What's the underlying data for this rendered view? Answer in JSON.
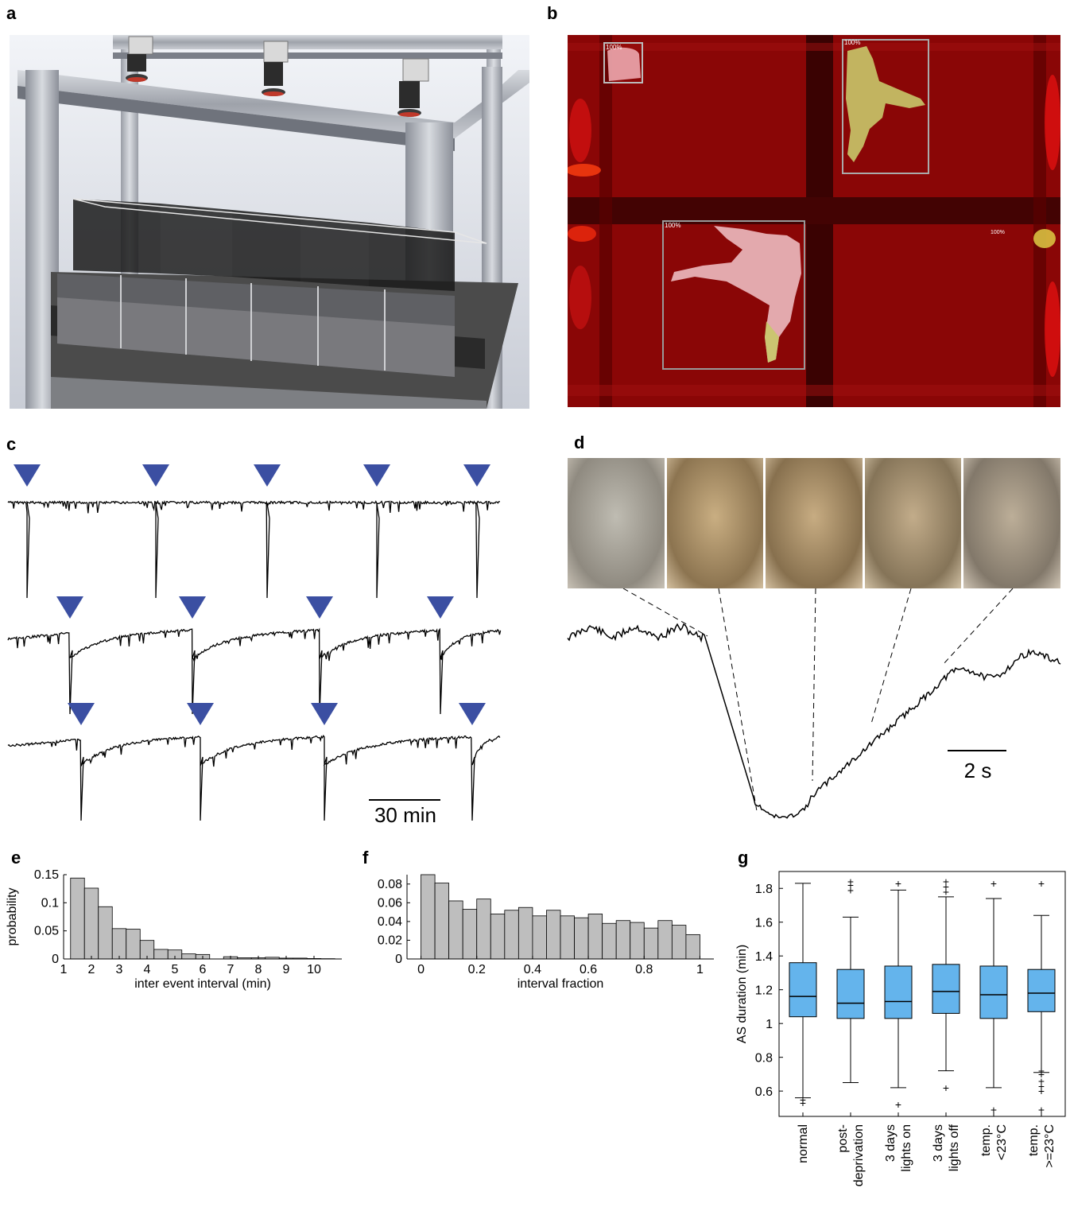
{
  "panels": {
    "a": {
      "letter": "a"
    },
    "b": {
      "letter": "b",
      "labels": [
        "100%",
        "100%",
        "100%",
        "100%"
      ]
    },
    "c": {
      "letter": "c",
      "scalebar": "30 min"
    },
    "d": {
      "letter": "d",
      "scalebar": "2 s"
    },
    "e": {
      "letter": "e"
    },
    "f": {
      "letter": "f"
    },
    "g": {
      "letter": "g"
    }
  },
  "colors": {
    "bar_fill": "#bebebe",
    "box_fill": "#64b4ec",
    "triangle": "#3b4fa2",
    "overlay_red": "#b00000"
  },
  "chart_data": [
    {
      "id": "e",
      "type": "bar",
      "xlabel": "inter event interval (min)",
      "ylabel": "probability",
      "xlim": [
        1,
        11
      ],
      "ylim": [
        0,
        0.15
      ],
      "x_ticks": [
        1,
        2,
        3,
        4,
        5,
        6,
        7,
        8,
        9,
        10
      ],
      "y_ticks": [
        0,
        0.05,
        0.1,
        0.15
      ],
      "y_tick_labels": [
        "0",
        "0.05",
        "0.1",
        "0.15"
      ],
      "bin_width": 0.5,
      "bin_starts": [
        1.25,
        1.75,
        2.25,
        2.75,
        3.25,
        3.75,
        4.25,
        4.75,
        5.25,
        5.75,
        6.25,
        6.75,
        7.25,
        7.75,
        8.25,
        8.75,
        9.25,
        9.75,
        10.25
      ],
      "values": [
        0.144,
        0.126,
        0.093,
        0.054,
        0.053,
        0.033,
        0.017,
        0.016,
        0.009,
        0.008,
        0.0,
        0.004,
        0.002,
        0.002,
        0.003,
        0.0015,
        0.0015,
        0.0008,
        0.0005
      ]
    },
    {
      "id": "f",
      "type": "bar",
      "xlabel": "interval fraction",
      "ylabel": "",
      "xlim": [
        -0.05,
        1.05
      ],
      "ylim": [
        0,
        0.09
      ],
      "x_ticks": [
        0,
        0.2,
        0.4,
        0.6,
        0.8,
        1
      ],
      "x_tick_labels": [
        "0",
        "0.2",
        "0.4",
        "0.6",
        "0.8",
        "1"
      ],
      "y_ticks": [
        0,
        0.02,
        0.04,
        0.06,
        0.08
      ],
      "y_tick_labels": [
        "0",
        "0.02",
        "0.04",
        "0.06",
        "0.08"
      ],
      "bin_width": 0.05,
      "bin_starts": [
        0,
        0.05,
        0.1,
        0.15,
        0.2,
        0.25,
        0.3,
        0.35,
        0.4,
        0.45,
        0.5,
        0.55,
        0.6,
        0.65,
        0.7,
        0.75,
        0.8,
        0.85,
        0.9,
        0.95
      ],
      "values": [
        0.09,
        0.081,
        0.062,
        0.053,
        0.064,
        0.048,
        0.052,
        0.055,
        0.046,
        0.052,
        0.046,
        0.044,
        0.048,
        0.038,
        0.041,
        0.039,
        0.033,
        0.041,
        0.036,
        0.026
      ]
    },
    {
      "id": "g",
      "type": "box",
      "ylabel": "AS duration (min)",
      "ylim": [
        0.45,
        1.9
      ],
      "y_ticks": [
        0.6,
        0.8,
        1,
        1.2,
        1.4,
        1.6,
        1.8
      ],
      "y_tick_labels": [
        "0.6",
        "0.8",
        "1",
        "1.2",
        "1.4",
        "1.6",
        "1.8"
      ],
      "categories": [
        [
          "normal"
        ],
        [
          "post-",
          "deprivation"
        ],
        [
          "3 days",
          "lights on"
        ],
        [
          "3 days",
          "lights off"
        ],
        [
          "temp.",
          "<23°C"
        ],
        [
          "temp.",
          ">=23°C"
        ]
      ],
      "boxes": [
        {
          "q1": 1.04,
          "median": 1.16,
          "q3": 1.36,
          "whisker_low": 0.56,
          "whisker_high": 1.83,
          "outliers": [
            0.55,
            0.53
          ]
        },
        {
          "q1": 1.03,
          "median": 1.12,
          "q3": 1.32,
          "whisker_low": 0.65,
          "whisker_high": 1.63,
          "outliers": [
            1.79,
            1.82,
            1.84
          ]
        },
        {
          "q1": 1.03,
          "median": 1.13,
          "q3": 1.34,
          "whisker_low": 0.62,
          "whisker_high": 1.79,
          "outliers": [
            0.52,
            1.83
          ]
        },
        {
          "q1": 1.06,
          "median": 1.19,
          "q3": 1.35,
          "whisker_low": 0.72,
          "whisker_high": 1.75,
          "outliers": [
            0.62,
            1.78,
            1.81,
            1.84
          ]
        },
        {
          "q1": 1.03,
          "median": 1.17,
          "q3": 1.34,
          "whisker_low": 0.62,
          "whisker_high": 1.74,
          "outliers": [
            0.49,
            1.83
          ]
        },
        {
          "q1": 1.07,
          "median": 1.18,
          "q3": 1.32,
          "whisker_low": 0.71,
          "whisker_high": 1.64,
          "outliers": [
            0.49,
            0.6,
            0.63,
            0.66,
            0.7,
            0.72,
            1.83
          ]
        }
      ]
    }
  ]
}
